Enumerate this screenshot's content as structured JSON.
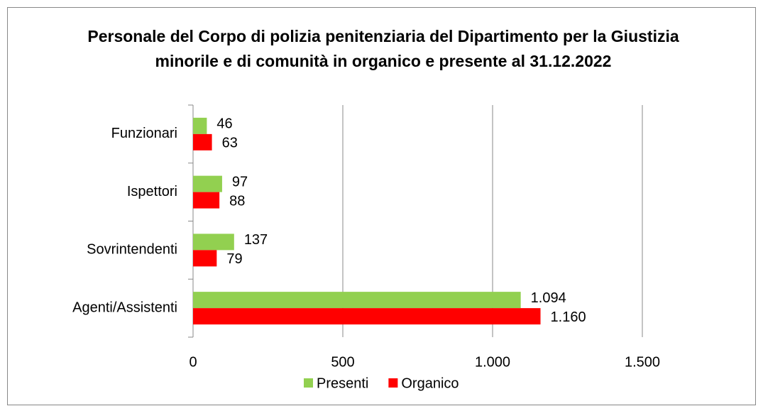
{
  "chart_data": {
    "type": "hbar",
    "title": "Personale del Corpo di polizia penitenziaria del Dipartimento per la Giustizia minorile e di comunità in organico e presente al 31.12.2022",
    "categories": [
      "Funzionari",
      "Ispettori",
      "Sovrintendenti",
      "Agenti/Assistenti"
    ],
    "series": [
      {
        "name": "Presenti",
        "color": "#92d050",
        "values": [
          46,
          97,
          137,
          1094
        ],
        "value_labels": [
          "46",
          "97",
          "137",
          "1.094"
        ]
      },
      {
        "name": "Organico",
        "color": "#ff0000",
        "values": [
          63,
          88,
          79,
          1160
        ],
        "value_labels": [
          "63",
          "88",
          "79",
          "1.160"
        ]
      }
    ],
    "xlim": [
      0,
      1500
    ],
    "xticks": [
      0,
      500,
      {
        "value": 1000,
        "label": "1.000"
      },
      {
        "value": 1500,
        "label": "1.500"
      }
    ],
    "grid": true,
    "legend": "bottom"
  }
}
